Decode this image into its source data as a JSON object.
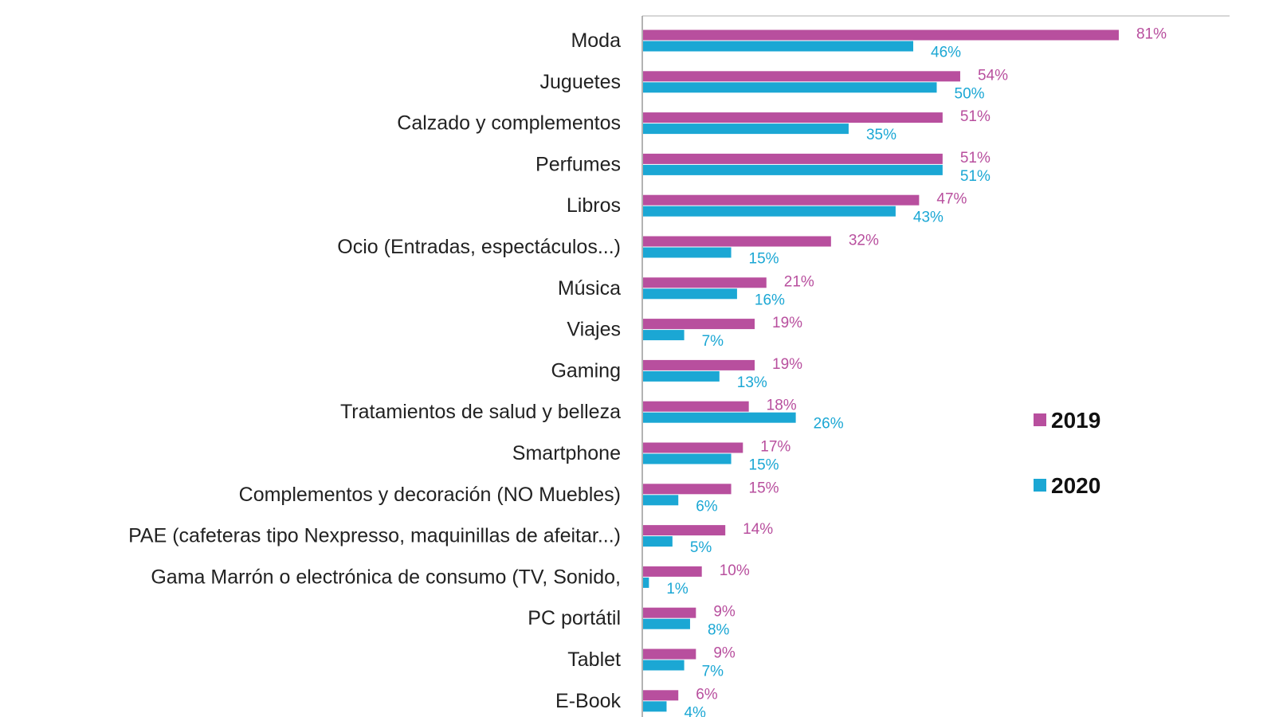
{
  "chart_data": {
    "type": "bar",
    "orientation": "horizontal",
    "title": "",
    "xlabel": "",
    "ylabel": "",
    "xlim": [
      0,
      100
    ],
    "grid": false,
    "legend_position": "right",
    "categories": [
      "Moda",
      "Juguetes",
      "Calzado y complementos",
      "Perfumes",
      "Libros",
      "Ocio (Entradas, espectáculos...)",
      "Música",
      "Viajes",
      "Gaming",
      "Tratamientos de salud y belleza",
      "Smartphone",
      "Complementos y decoración (NO Muebles)",
      "PAE (cafeteras tipo Nexpresso, maquinillas de afeitar...)",
      "Gama Marrón o electrónica de consumo (TV, Sonido,",
      "PC portátil",
      "Tablet",
      "E-Book"
    ],
    "series": [
      {
        "name": "2019",
        "color": "#b84f9e",
        "values": [
          81,
          54,
          51,
          51,
          47,
          32,
          21,
          19,
          19,
          18,
          17,
          15,
          14,
          10,
          9,
          9,
          6
        ],
        "labels": [
          "81%",
          "54%",
          "51%",
          "51%",
          "47%",
          "32%",
          "21%",
          "19%",
          "19%",
          "18%",
          "17%",
          "15%",
          "14%",
          "10%",
          "9%",
          "9%",
          "6%"
        ]
      },
      {
        "name": "2020",
        "color": "#1ba7d4",
        "values": [
          46,
          50,
          35,
          51,
          43,
          15,
          16,
          7,
          13,
          26,
          15,
          6,
          5,
          1,
          8,
          7,
          4
        ],
        "labels": [
          "46%",
          "50%",
          "35%",
          "51%",
          "43%",
          "15%",
          "16%",
          "7%",
          "13%",
          "26%",
          "15%",
          "6%",
          "5%",
          "1%",
          "8%",
          "7%",
          "4%"
        ]
      }
    ]
  }
}
